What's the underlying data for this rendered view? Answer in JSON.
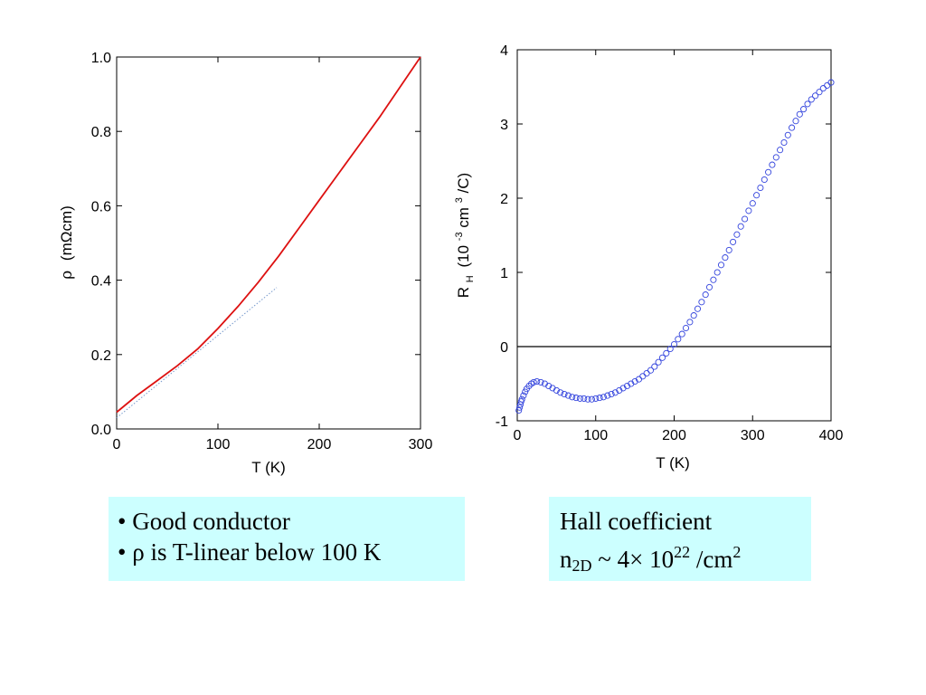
{
  "chart_data": [
    {
      "type": "line",
      "xlabel": "T (K)",
      "ylabel": {
        "symbol": "ρ",
        "unit": "(mΩcm)"
      },
      "xlim": [
        0,
        300
      ],
      "ylim": [
        0,
        1.0
      ],
      "xticks": [
        "0",
        "100",
        "200",
        "300"
      ],
      "yticks": [
        "0.0",
        "0.2",
        "0.4",
        "0.6",
        "0.8",
        "1.0"
      ],
      "grid": false,
      "series": [
        {
          "color": "#dd1111",
          "style": "solid",
          "x": [
            0,
            20,
            40,
            60,
            80,
            100,
            120,
            140,
            160,
            180,
            200,
            220,
            240,
            260,
            280,
            300
          ],
          "y": [
            0.045,
            0.09,
            0.13,
            0.17,
            0.215,
            0.27,
            0.33,
            0.395,
            0.465,
            0.54,
            0.615,
            0.69,
            0.765,
            0.84,
            0.92,
            1.0
          ]
        },
        {
          "color": "#7799cc",
          "style": "dotted",
          "x": [
            0,
            158
          ],
          "y": [
            0.03,
            0.38
          ]
        }
      ]
    },
    {
      "type": "scatter",
      "xlabel": "T (K)",
      "ylabel": {
        "base": "R",
        "sub": "H",
        "pre": "(10",
        "sup1": "-3",
        "mid": "cm",
        "sup2": "3",
        "post": "/C)"
      },
      "xlim": [
        0,
        400
      ],
      "ylim": [
        -1,
        4
      ],
      "xticks": [
        "0",
        "100",
        "200",
        "300",
        "400"
      ],
      "yticks": [
        "-1",
        "0",
        "1",
        "2",
        "3",
        "4"
      ],
      "grid": false,
      "reference_line_y": 0,
      "series": [
        {
          "color": "#3344dd",
          "marker": "open-circle",
          "points": [
            [
              2,
              -0.86
            ],
            [
              3,
              -0.82
            ],
            [
              4,
              -0.78
            ],
            [
              5,
              -0.74
            ],
            [
              6,
              -0.71
            ],
            [
              8,
              -0.66
            ],
            [
              10,
              -0.61
            ],
            [
              12,
              -0.57
            ],
            [
              15,
              -0.53
            ],
            [
              18,
              -0.5
            ],
            [
              21,
              -0.48
            ],
            [
              25,
              -0.47
            ],
            [
              30,
              -0.48
            ],
            [
              35,
              -0.5
            ],
            [
              40,
              -0.53
            ],
            [
              45,
              -0.56
            ],
            [
              50,
              -0.59
            ],
            [
              55,
              -0.62
            ],
            [
              60,
              -0.64
            ],
            [
              65,
              -0.66
            ],
            [
              70,
              -0.68
            ],
            [
              75,
              -0.69
            ],
            [
              80,
              -0.7
            ],
            [
              85,
              -0.7
            ],
            [
              90,
              -0.71
            ],
            [
              95,
              -0.71
            ],
            [
              100,
              -0.7
            ],
            [
              105,
              -0.69
            ],
            [
              110,
              -0.68
            ],
            [
              115,
              -0.66
            ],
            [
              120,
              -0.64
            ],
            [
              125,
              -0.62
            ],
            [
              130,
              -0.59
            ],
            [
              135,
              -0.56
            ],
            [
              140,
              -0.53
            ],
            [
              145,
              -0.5
            ],
            [
              150,
              -0.47
            ],
            [
              155,
              -0.44
            ],
            [
              160,
              -0.4
            ],
            [
              165,
              -0.36
            ],
            [
              170,
              -0.32
            ],
            [
              175,
              -0.27
            ],
            [
              180,
              -0.21
            ],
            [
              185,
              -0.15
            ],
            [
              190,
              -0.09
            ],
            [
              195,
              -0.03
            ],
            [
              200,
              0.03
            ],
            [
              205,
              0.1
            ],
            [
              210,
              0.17
            ],
            [
              215,
              0.25
            ],
            [
              220,
              0.33
            ],
            [
              225,
              0.42
            ],
            [
              230,
              0.51
            ],
            [
              235,
              0.6
            ],
            [
              240,
              0.7
            ],
            [
              245,
              0.8
            ],
            [
              250,
              0.9
            ],
            [
              255,
              1.0
            ],
            [
              260,
              1.1
            ],
            [
              265,
              1.2
            ],
            [
              270,
              1.3
            ],
            [
              275,
              1.41
            ],
            [
              280,
              1.51
            ],
            [
              285,
              1.62
            ],
            [
              290,
              1.72
            ],
            [
              295,
              1.83
            ],
            [
              300,
              1.93
            ],
            [
              305,
              2.04
            ],
            [
              310,
              2.14
            ],
            [
              315,
              2.25
            ],
            [
              320,
              2.35
            ],
            [
              325,
              2.45
            ],
            [
              330,
              2.55
            ],
            [
              335,
              2.65
            ],
            [
              340,
              2.75
            ],
            [
              345,
              2.85
            ],
            [
              350,
              2.95
            ],
            [
              355,
              3.04
            ],
            [
              360,
              3.13
            ],
            [
              365,
              3.2
            ],
            [
              370,
              3.27
            ],
            [
              375,
              3.33
            ],
            [
              380,
              3.38
            ],
            [
              385,
              3.43
            ],
            [
              390,
              3.48
            ],
            [
              395,
              3.52
            ],
            [
              400,
              3.56
            ]
          ]
        }
      ]
    }
  ],
  "notes": {
    "left": {
      "bullet": "•",
      "line1": "Good conductor",
      "line2_symbol": "ρ",
      "line2_rest": " is T-linear below 100 K"
    },
    "right": {
      "line1": "Hall coefficient",
      "n": "n",
      "n_sub": "2D",
      "approx": " ~ 4× 10",
      "exp": "22",
      "unit": " /cm",
      "unit_sup": "2"
    }
  }
}
